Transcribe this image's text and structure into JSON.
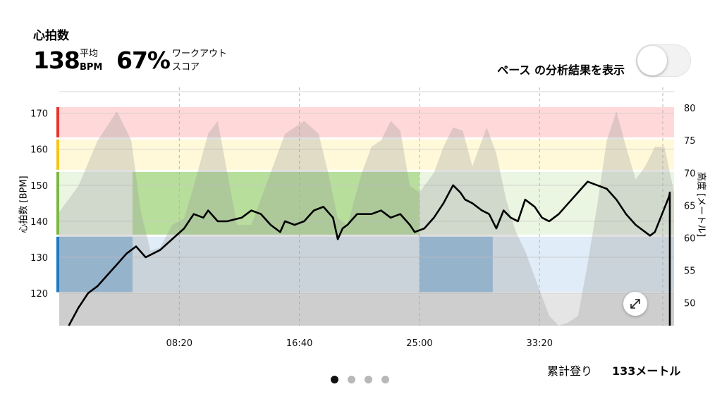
{
  "header": {
    "title": "心拍数",
    "avg_value": "138",
    "avg_label_top": "平均",
    "avg_label_bottom": "BPM",
    "score_value": "67%",
    "score_label_top": "ワークアウト",
    "score_label_bottom": "スコア"
  },
  "pace_toggle": {
    "label": "ペース の分析結果を表示",
    "on": false
  },
  "chart_data": {
    "type": "line",
    "y_left": {
      "label": "心拍数 [BPM]",
      "ticks": [
        120,
        130,
        140,
        150,
        160,
        170
      ],
      "range": [
        111,
        176
      ]
    },
    "y_right": {
      "label": "高度 [メートル]",
      "ticks": [
        50,
        55,
        60,
        65,
        70,
        75,
        80
      ],
      "range": [
        46.5,
        82.5
      ]
    },
    "x": {
      "ticks": [
        "08:20",
        "16:40",
        "25:00",
        "33:20"
      ],
      "tick_seconds": [
        500,
        1000,
        1500,
        2000
      ],
      "range_seconds": [
        0,
        2560
      ]
    },
    "zones": [
      {
        "name": "zone5",
        "min": 163,
        "max": 172,
        "color": "#ff0000",
        "bar": "#e8352c"
      },
      {
        "name": "zone4",
        "min": 154,
        "max": 163,
        "color": "#ffd700",
        "bar": "#f5c518"
      },
      {
        "name": "zone3",
        "min": 136,
        "max": 154,
        "color": "#6fbf3a",
        "bar": "#7bb843"
      },
      {
        "name": "zone2",
        "min": 120,
        "max": 136,
        "color": "#2f80c9",
        "bar": "#1f7ac2"
      }
    ],
    "series": [
      {
        "axis": "left",
        "color": "#000000",
        "points": [
          [
            40,
            111
          ],
          [
            80,
            116
          ],
          [
            120,
            120
          ],
          [
            160,
            122
          ],
          [
            200,
            125
          ],
          [
            240,
            128
          ],
          [
            280,
            131
          ],
          [
            320,
            133
          ],
          [
            360,
            130
          ],
          [
            420,
            132
          ],
          [
            470,
            135
          ],
          [
            520,
            138
          ],
          [
            560,
            142
          ],
          [
            600,
            141
          ],
          [
            620,
            143
          ],
          [
            660,
            140
          ],
          [
            700,
            140
          ],
          [
            760,
            141
          ],
          [
            800,
            143
          ],
          [
            840,
            142
          ],
          [
            880,
            139
          ],
          [
            920,
            137
          ],
          [
            940,
            140
          ],
          [
            980,
            139
          ],
          [
            1020,
            140
          ],
          [
            1060,
            143
          ],
          [
            1100,
            144
          ],
          [
            1140,
            141
          ],
          [
            1160,
            135
          ],
          [
            1180,
            138
          ],
          [
            1200,
            139
          ],
          [
            1240,
            142
          ],
          [
            1300,
            142
          ],
          [
            1340,
            143
          ],
          [
            1380,
            141
          ],
          [
            1420,
            142
          ],
          [
            1460,
            139
          ],
          [
            1480,
            137
          ],
          [
            1520,
            138
          ],
          [
            1560,
            141
          ],
          [
            1600,
            145
          ],
          [
            1640,
            150
          ],
          [
            1670,
            148
          ],
          [
            1690,
            146
          ],
          [
            1720,
            145
          ],
          [
            1760,
            143
          ],
          [
            1790,
            142
          ],
          [
            1820,
            138
          ],
          [
            1850,
            143
          ],
          [
            1880,
            141
          ],
          [
            1910,
            140
          ],
          [
            1940,
            146
          ],
          [
            1980,
            144
          ],
          [
            2010,
            141
          ],
          [
            2040,
            140
          ],
          [
            2080,
            142
          ],
          [
            2120,
            145
          ],
          [
            2160,
            148
          ],
          [
            2200,
            151
          ],
          [
            2240,
            150
          ],
          [
            2280,
            149
          ],
          [
            2320,
            146
          ],
          [
            2360,
            142
          ],
          [
            2400,
            139
          ],
          [
            2440,
            137
          ],
          [
            2460,
            136
          ],
          [
            2480,
            137
          ],
          [
            2510,
            142
          ],
          [
            2540,
            147
          ],
          [
            2570,
            148
          ],
          [
            2600,
            139
          ],
          [
            2630,
            128
          ],
          [
            2660,
            127
          ],
          [
            2690,
            128
          ],
          [
            2710,
            125
          ],
          [
            2730,
            111
          ]
        ]
      },
      {
        "axis": "right",
        "color": "#999999",
        "points": [
          [
            0,
            64
          ],
          [
            80,
            68
          ],
          [
            160,
            75
          ],
          [
            240,
            79.5
          ],
          [
            300,
            75
          ],
          [
            340,
            64
          ],
          [
            380,
            58
          ],
          [
            420,
            58.5
          ],
          [
            470,
            62
          ],
          [
            520,
            63
          ],
          [
            560,
            68
          ],
          [
            620,
            76
          ],
          [
            660,
            78
          ],
          [
            700,
            70
          ],
          [
            740,
            62
          ],
          [
            800,
            62
          ],
          [
            860,
            68
          ],
          [
            940,
            76
          ],
          [
            980,
            77
          ],
          [
            1020,
            78
          ],
          [
            1080,
            76
          ],
          [
            1120,
            70
          ],
          [
            1160,
            63
          ],
          [
            1200,
            62
          ],
          [
            1260,
            70
          ],
          [
            1300,
            74
          ],
          [
            1340,
            75
          ],
          [
            1380,
            78
          ],
          [
            1420,
            76.5
          ],
          [
            1460,
            68
          ],
          [
            1500,
            67
          ],
          [
            1560,
            70
          ],
          [
            1600,
            74
          ],
          [
            1640,
            77
          ],
          [
            1680,
            76.5
          ],
          [
            1720,
            71
          ],
          [
            1760,
            75
          ],
          [
            1780,
            77
          ],
          [
            1820,
            73
          ],
          [
            1860,
            66
          ],
          [
            1900,
            61
          ],
          [
            1940,
            58
          ],
          [
            1980,
            54
          ],
          [
            2040,
            48
          ],
          [
            2080,
            46.5
          ],
          [
            2120,
            47
          ],
          [
            2160,
            48
          ],
          [
            2200,
            56
          ],
          [
            2240,
            65
          ],
          [
            2280,
            75
          ],
          [
            2320,
            79.5
          ],
          [
            2360,
            74
          ],
          [
            2400,
            69
          ],
          [
            2440,
            71
          ],
          [
            2480,
            74
          ],
          [
            2520,
            74
          ],
          [
            2560,
            67
          ],
          [
            2600,
            68
          ],
          [
            2640,
            66
          ],
          [
            2680,
            60
          ],
          [
            2720,
            64
          ],
          [
            2750,
            66
          ]
        ]
      }
    ],
    "zone_highlights": [
      {
        "zone": "zone2",
        "from": 0,
        "to": 305
      },
      {
        "zone": "zone3",
        "from": 305,
        "to": 1500
      },
      {
        "zone": "zone2",
        "from": 1500,
        "to": 1805
      }
    ]
  },
  "summary": {
    "label": "累計登り",
    "value": "133メートル"
  },
  "pagination": {
    "count": 4,
    "active": 0
  }
}
